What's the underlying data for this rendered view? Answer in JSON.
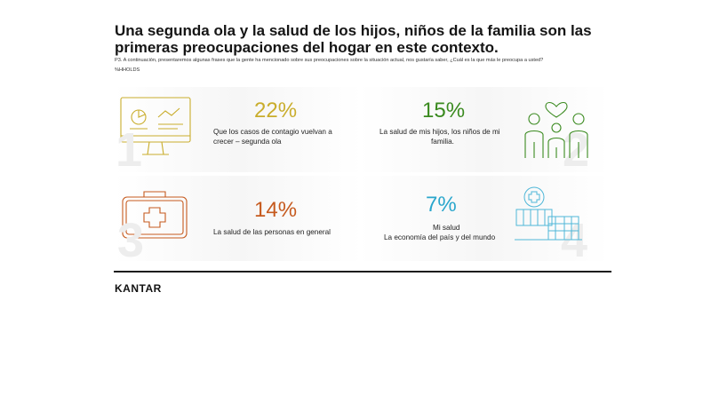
{
  "header": {
    "title": "Una segunda ola y la salud de los hijos, niños de la familia son las primeras preocupaciones del hogar en este contexto.",
    "question": "P3. A continuación, presentaremos algunas frases que la gente ha mencionado sobre sus preocupaciones sobre la situación actual, nos gustaría saber, ¿Cuál es la que más le preocupa a usted?",
    "base": "%HHOLDS"
  },
  "items": [
    {
      "rank": "1",
      "percent": "22%",
      "color": "#c9ad2c",
      "lines": [
        "Que los casos de contagio vuelvan a",
        "crecer – segunda ola"
      ],
      "icon": "monitor-chart-icon"
    },
    {
      "rank": "2",
      "percent": "15%",
      "color": "#3a8a1f",
      "lines": [
        "La salud de mis hijos, los niños de mi",
        "familia."
      ],
      "icon": "family-heart-icon"
    },
    {
      "rank": "3",
      "percent": "14%",
      "color": "#c65a1e",
      "lines": [
        "La salud de las personas en general"
      ],
      "icon": "medical-kit-icon"
    },
    {
      "rank": "4",
      "percent": "7%",
      "color": "#2aa6cc",
      "lines": [
        "Mi salud",
        "La economía del país y del mundo"
      ],
      "icon": "hospital-building-icon"
    }
  ],
  "footer": {
    "logo": "KANTAR"
  }
}
